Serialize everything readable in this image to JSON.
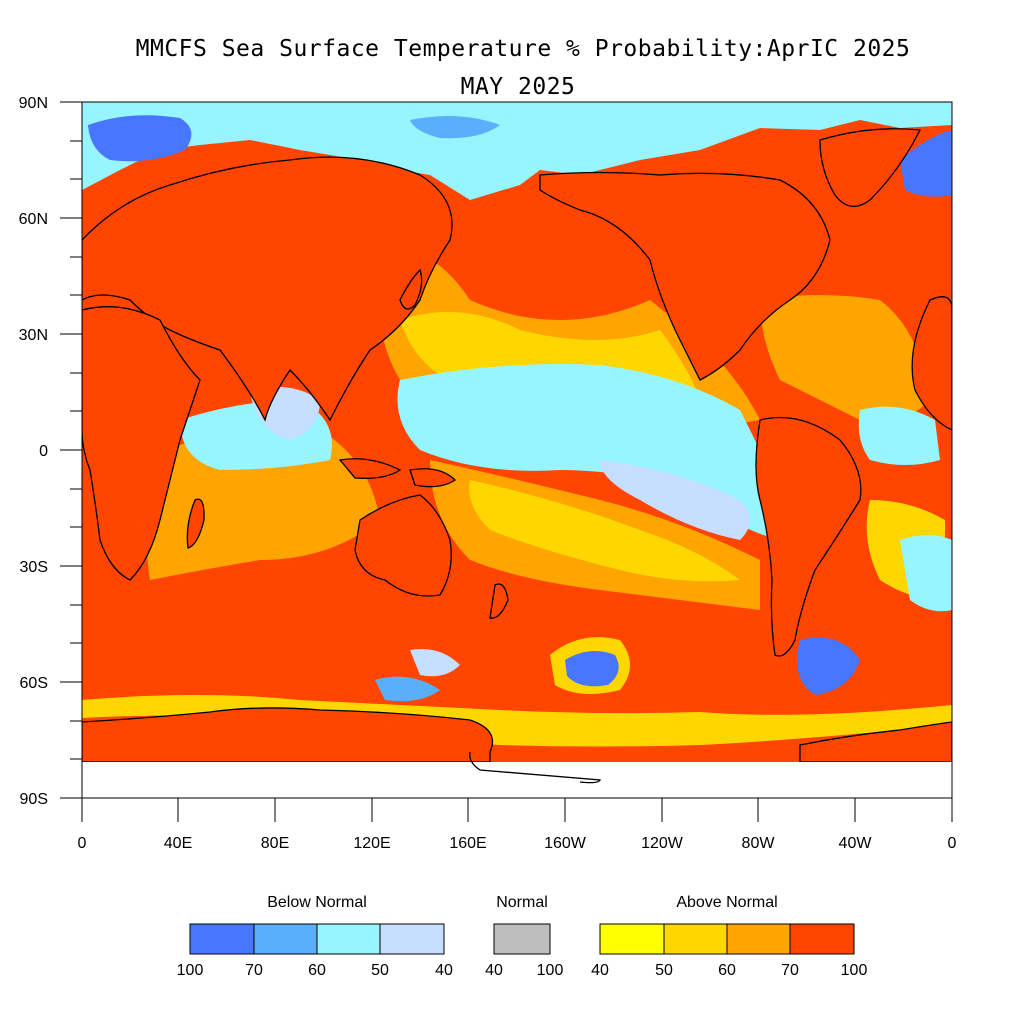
{
  "title": {
    "line1": "MMCFS Sea Surface Temperature % Probability:AprIC 2025",
    "line2": "MAY 2025"
  },
  "axes": {
    "lat_ticks": [
      "90N",
      "60N",
      "30N",
      "0",
      "30S",
      "60S",
      "90S"
    ],
    "lon_ticks": [
      "0",
      "40E",
      "80E",
      "120E",
      "160E",
      "160W",
      "120W",
      "80W",
      "40W",
      "0"
    ]
  },
  "legend": {
    "below": {
      "title": "Below Normal",
      "colors": [
        "#4876ff",
        "#5aaffa",
        "#96f5ff",
        "#c6deff"
      ],
      "labels": [
        "100",
        "70",
        "60",
        "50",
        "40"
      ]
    },
    "normal": {
      "title": "Normal",
      "colors": [
        "#bebebe"
      ],
      "labels": [
        "40",
        "100"
      ]
    },
    "above": {
      "title": "Above Normal",
      "colors": [
        "#ffff00",
        "#ffd700",
        "#ffa500",
        "#ff4500"
      ],
      "labels": [
        "40",
        "50",
        "60",
        "70",
        "100"
      ]
    }
  },
  "map_colors": {
    "ocean_base": "#ff4500",
    "cool_band": "#96f5ff",
    "above_60": "#ffa500",
    "above_50": "#ffd700",
    "below_70": "#4876ff",
    "below_40": "#c6deff",
    "land": "#ff4500",
    "coast": "#000000",
    "nodata": "#ffffff"
  }
}
